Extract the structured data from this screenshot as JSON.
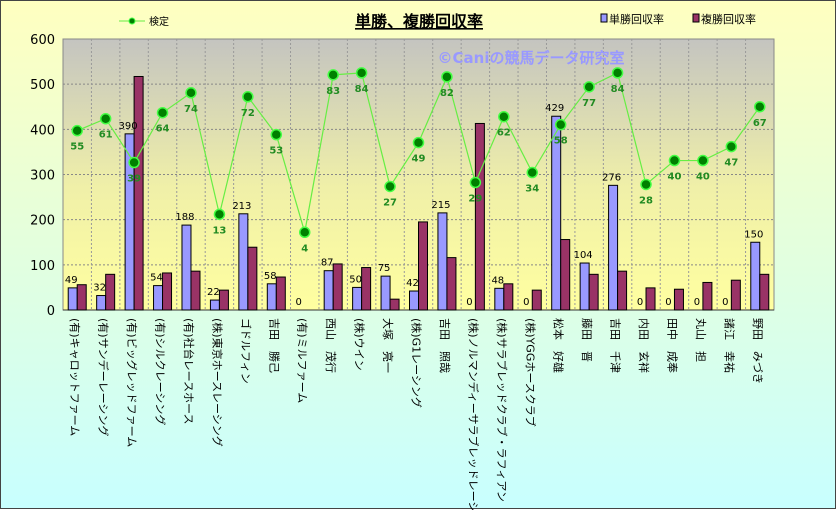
{
  "chart_data": {
    "type": "bar",
    "title": "単勝、複勝回収率",
    "watermark": "©Caniの競馬データ研究室",
    "ylim": [
      0,
      600
    ],
    "yticks": [
      0,
      100,
      200,
      300,
      400,
      500,
      600
    ],
    "hit_axis_range": [
      -35,
      101
    ],
    "legend": {
      "line": "検定",
      "bar1": "単勝回収率",
      "bar2": "複勝回収率"
    },
    "categories": [
      "(有)キャロットファーム",
      "(有)サンデーレーシング",
      "(有)ビッグレッドファーム",
      "(有)シルクレーシング",
      "(有)社台レースホース",
      "(株)東京ホースレーシング",
      "ゴドルフィン",
      "吉田　勝己",
      "(有)ミルファーム",
      "西山　茂行",
      "(株)ウイン",
      "大塚　亮一",
      "(株)G1レーシング",
      "吉田　照哉",
      "(株)ノルマンディーサラブレッドレーシ.",
      "(株)サラブレッドクラブ・ラフィアン",
      "(株)YGGホースクラブ",
      "松本　好雄",
      "藤田　晋",
      "吉田　千津",
      "内田　玄祥",
      "田中　成奉",
      "丸山　担",
      "諸江　幸祐",
      "野田　みづき"
    ],
    "series": [
      {
        "name": "単勝回収率",
        "color": "#9999ff",
        "values": [
          49,
          32,
          390,
          54,
          188,
          22,
          213,
          58,
          0,
          87,
          50,
          75,
          42,
          215,
          0,
          48,
          0,
          429,
          104,
          276,
          0,
          0,
          0,
          0,
          150
        ]
      },
      {
        "name": "複勝回収率",
        "color": "#993366",
        "values": [
          56,
          79,
          517,
          82,
          86,
          44,
          139,
          73,
          0,
          102,
          94,
          24,
          195,
          116,
          413,
          58,
          44,
          156,
          79,
          86,
          49,
          46,
          61,
          66,
          79
        ]
      },
      {
        "name": "検定",
        "color": "#008000",
        "values": [
          55,
          61,
          39,
          64,
          74,
          13,
          72,
          53,
          4,
          83,
          84,
          27,
          49,
          82,
          29,
          62,
          34,
          58,
          77,
          84,
          28,
          40,
          40,
          47,
          67
        ]
      }
    ]
  }
}
